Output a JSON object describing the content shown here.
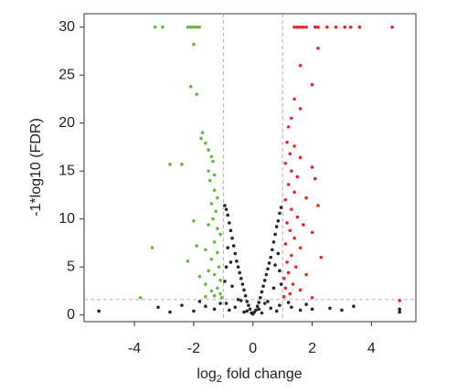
{
  "chart_data": {
    "type": "scatter",
    "xlabel": [
      "log",
      "2",
      "fold change"
    ],
    "ylabel": "-1*log10 (FDR)",
    "xlim": [
      -5.7,
      5.5
    ],
    "ylim": [
      -0.7,
      31.4
    ],
    "xticks": [
      -4,
      -2,
      0,
      2,
      4
    ],
    "yticks": [
      0,
      5,
      10,
      15,
      20,
      25,
      30
    ],
    "thresholds": {
      "x": [
        -1,
        1
      ],
      "y": 1.6
    },
    "threshold_color": "#b0b0b0",
    "series": [
      {
        "color": "#262626",
        "x": [
          0,
          0.05,
          -0.05,
          0.1,
          -0.1,
          0.15,
          -0.15,
          0.2,
          -0.2,
          0.25,
          -0.25,
          0.3,
          -0.3,
          0.35,
          -0.35,
          0.4,
          -0.4,
          0.45,
          -0.45,
          0.5,
          -0.5,
          0.55,
          -0.55,
          0.6,
          -0.6,
          0.65,
          -0.65,
          0.7,
          -0.7,
          0.75,
          -0.75,
          0.8,
          -0.8,
          -0.85,
          0.85,
          -0.9,
          0.9,
          -0.95,
          0.95,
          -0.85,
          0.85,
          -0.9,
          0.9,
          -0.7,
          0.7,
          -0.5,
          0.5,
          -0.6,
          0.6,
          -0.9,
          0.9,
          -0.8,
          0.8,
          -0.3,
          0.3,
          -1.3,
          1.3,
          -1.6,
          1.6,
          -2.0,
          2.0,
          -2.4,
          2.6,
          -2.8,
          3.0,
          -1.1,
          1.2,
          -1.8,
          1.8,
          -3.2,
          3.4,
          -5.2,
          4.95,
          4.95,
          -0.95,
          0.95,
          -0.75,
          0.75,
          -0.4,
          0.4,
          -0.2,
          0.2
        ],
        "values": [
          0.1,
          0.3,
          0.2,
          0.5,
          0.6,
          0.9,
          1.0,
          1.3,
          1.4,
          1.8,
          2.0,
          2.4,
          2.6,
          3.0,
          3.2,
          3.6,
          3.8,
          4.2,
          4.4,
          4.8,
          5.0,
          5.4,
          5.6,
          6.0,
          6.4,
          6.8,
          7.2,
          7.6,
          8.0,
          8.4,
          8.8,
          9.2,
          9.6,
          10.4,
          9.8,
          11,
          10.6,
          11.4,
          11.2,
          7,
          6.4,
          5,
          4.6,
          3,
          2.8,
          1.6,
          1.4,
          0.8,
          0.7,
          1.2,
          1.0,
          0.5,
          0.4,
          0.3,
          0.2,
          0.6,
          0.8,
          0.9,
          0.5,
          0.4,
          0.6,
          1.0,
          0.7,
          0.3,
          0.5,
          1.2,
          1.3,
          1.4,
          1.1,
          0.8,
          0.9,
          0.4,
          0.6,
          0.3,
          3.5,
          3.2,
          5.5,
          5.2,
          1.5,
          1.2,
          0.4,
          0.6
        ]
      },
      {
        "color": "#6db33f",
        "x": [
          -3.3,
          -3.05,
          -2.2,
          -2.1,
          -2.0,
          -1.9,
          -1.8,
          -2.0,
          -2.1,
          -1.9,
          -1.7,
          -1.75,
          -1.6,
          -1.5,
          -1.4,
          -2.8,
          -2.4,
          -1.35,
          -1.5,
          -1.3,
          -1.45,
          -1.3,
          -1.2,
          -1.4,
          -1.25,
          -1.35,
          -2.0,
          -1.5,
          -1.2,
          -1.1,
          -1.3,
          -3.4,
          -1.9,
          -1.6,
          -1.2,
          -1.4,
          -2.2,
          -1.15,
          -1.5,
          -1.3,
          -1.8,
          -1.1,
          -1.6,
          -1.2,
          -1.4,
          -3.8,
          -1.1,
          -1.3,
          -1.6,
          -1.05
        ],
        "values": [
          30,
          30,
          30,
          30,
          30,
          30,
          30,
          28.2,
          23.8,
          23,
          19,
          18.4,
          17.9,
          17.2,
          16.5,
          15.7,
          15.7,
          16,
          15,
          14.6,
          14,
          13,
          12.2,
          11.6,
          10.8,
          10,
          9.8,
          9.4,
          9,
          8.4,
          7.6,
          7,
          7.2,
          6.8,
          6.5,
          5.8,
          5.6,
          5,
          4.6,
          4.2,
          4,
          3.6,
          3.2,
          2.8,
          2.5,
          1.8,
          2.2,
          2,
          1.9,
          1.8
        ]
      },
      {
        "color": "#e8262a",
        "x": [
          1.4,
          1.5,
          1.6,
          1.7,
          1.8,
          2.1,
          2.2,
          2.5,
          2.8,
          3.1,
          3.3,
          3.6,
          4.7,
          2.2,
          1.6,
          2.0,
          1.4,
          1.6,
          1.3,
          1.2,
          1.15,
          1.4,
          1.25,
          1.6,
          1.1,
          2.0,
          1.3,
          1.5,
          2.1,
          1.2,
          1.4,
          1.1,
          1.8,
          2.2,
          1.3,
          1.5,
          1.15,
          1.7,
          1.25,
          2.0,
          1.4,
          1.1,
          1.6,
          1.3,
          2.3,
          1.15,
          1.45,
          1.2,
          1.8,
          1.05,
          1.35,
          1.1,
          1.6,
          1.25,
          1.05,
          2.0,
          4.95
        ],
        "values": [
          30,
          30,
          30,
          30,
          30,
          30,
          30,
          30,
          30,
          30,
          30,
          30,
          30,
          27.8,
          26,
          24,
          22.5,
          21.5,
          20.5,
          19.6,
          18,
          17.6,
          16.8,
          16.4,
          15.8,
          15.4,
          15,
          14.4,
          14.2,
          13.6,
          12.8,
          12,
          12.2,
          11.4,
          11,
          10.2,
          9.6,
          9.4,
          8.8,
          8.6,
          8,
          7.4,
          7,
          6.2,
          6,
          5.5,
          5,
          4.4,
          4.2,
          3.8,
          3.2,
          2.8,
          2.6,
          2.2,
          1.9,
          1.8,
          1.5
        ]
      }
    ]
  }
}
